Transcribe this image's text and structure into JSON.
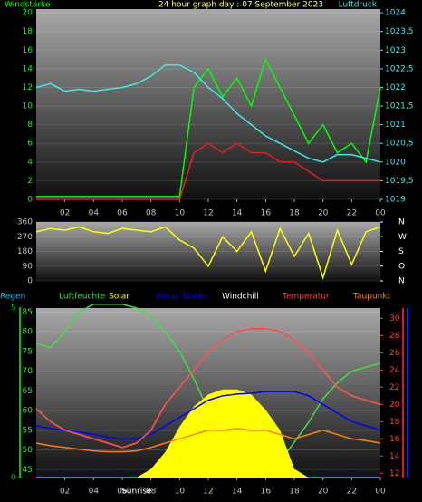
{
  "chart_data": [
    {
      "type": "line",
      "title": "24 hour graph day : 07 September 2023",
      "ylabel": "Windstärke",
      "y2label": "Luftdruck",
      "x": [
        0,
        1,
        2,
        3,
        4,
        5,
        6,
        7,
        8,
        9,
        10,
        11,
        12,
        13,
        14,
        15,
        16,
        17,
        18,
        19,
        20,
        21,
        22,
        23,
        24
      ],
      "xlim": [
        0,
        24
      ],
      "xticks": [
        {
          "value": 2,
          "label": "02"
        },
        {
          "value": 4,
          "label": "04"
        },
        {
          "value": 6,
          "label": "06"
        },
        {
          "value": 8,
          "label": "08"
        },
        10,
        12,
        14,
        16,
        18,
        20,
        22,
        {
          "value": 24,
          "label": "00"
        }
      ],
      "ylim": [
        0,
        20.4
      ],
      "yticks": [
        0,
        2,
        4,
        6,
        8,
        10,
        12,
        14,
        16,
        18,
        20
      ],
      "y2lim": [
        1019,
        1024.1
      ],
      "y2ticks": [
        1019,
        {
          "value": 1019.5,
          "label": "1019,5"
        },
        1020,
        {
          "value": 1020.5,
          "label": "1020,5"
        },
        1021,
        {
          "value": 1021.5,
          "label": "1021,5"
        },
        1022,
        {
          "value": 1022.5,
          "label": "1022,5"
        },
        1023,
        {
          "value": 1023.5,
          "label": "1023,5"
        },
        1024
      ],
      "series": [
        {
          "color": "#00ff00",
          "values": [
            0.3,
            0.3,
            0.3,
            0.3,
            0.3,
            0.3,
            0.3,
            0.3,
            0.3,
            0.3,
            0.3,
            12,
            14,
            11,
            13,
            10,
            15,
            12,
            9,
            6,
            8,
            5,
            6,
            4,
            12
          ]
        },
        {
          "color": "#e02020",
          "values": [
            0,
            0,
            0,
            0,
            0,
            0,
            0,
            0,
            0,
            0,
            0,
            5,
            6,
            5,
            6,
            5,
            5,
            4,
            4,
            3,
            2,
            2,
            2,
            2,
            2
          ]
        },
        {
          "color": "#40e8e8",
          "axis": "y2",
          "values": [
            1022.0,
            1022.1,
            1021.9,
            1021.95,
            1021.9,
            1021.95,
            1022.0,
            1022.1,
            1022.3,
            1022.6,
            1022.6,
            1022.4,
            1022.0,
            1021.7,
            1021.3,
            1021.0,
            1020.7,
            1020.5,
            1020.3,
            1020.1,
            1020.0,
            1020.2,
            1020.2,
            1020.1,
            1020.0
          ]
        }
      ]
    },
    {
      "type": "line",
      "x": [
        0,
        1,
        2,
        3,
        4,
        5,
        6,
        7,
        8,
        9,
        10,
        11,
        12,
        13,
        14,
        15,
        16,
        17,
        18,
        19,
        20,
        21,
        22,
        23,
        24
      ],
      "xlim": [
        0,
        24
      ],
      "ylim": [
        0,
        360
      ],
      "yticks": [
        0,
        90,
        180,
        270,
        360
      ],
      "y2lim": [
        0,
        360
      ],
      "y2ticks": [
        {
          "value": 0,
          "label": "N"
        },
        {
          "value": 90,
          "label": "O"
        },
        {
          "value": 180,
          "label": "S"
        },
        {
          "value": 270,
          "label": "W"
        },
        {
          "value": 360,
          "label": "N"
        }
      ],
      "series": [
        {
          "color": "#ffff00",
          "values": [
            300,
            320,
            310,
            330,
            300,
            290,
            320,
            310,
            300,
            330,
            250,
            200,
            90,
            270,
            180,
            300,
            60,
            320,
            150,
            290,
            20,
            310,
            100,
            300,
            330
          ]
        }
      ]
    },
    {
      "type": "line",
      "x": [
        0,
        1,
        2,
        3,
        4,
        5,
        6,
        7,
        8,
        9,
        10,
        11,
        12,
        13,
        14,
        15,
        16,
        17,
        18,
        19,
        20,
        21,
        22,
        23,
        24
      ],
      "xlim": [
        0,
        24
      ],
      "xticks": [
        {
          "value": 2,
          "label": "02"
        },
        {
          "value": 4,
          "label": "04"
        },
        {
          "value": 6,
          "label": "06"
        },
        {
          "value": 8,
          "label": "08"
        },
        10,
        12,
        14,
        16,
        18,
        20,
        22,
        {
          "value": 24,
          "label": "00"
        }
      ],
      "rainlim": [
        0,
        5
      ],
      "rainticks": [
        0,
        5
      ],
      "ylim": [
        43,
        86
      ],
      "yticks": [
        45,
        50,
        55,
        60,
        65,
        70,
        75,
        80,
        85
      ],
      "y2lim": [
        11.5,
        31.2
      ],
      "y2ticks": [
        12,
        14,
        16,
        18,
        20,
        22,
        24,
        26,
        28,
        30
      ],
      "solarlim": [
        0,
        1000
      ],
      "annotations": [
        {
          "text": "Sunrise",
          "x": 7
        }
      ],
      "series": [
        {
          "name": "Regen",
          "color": "#00bfff",
          "axis": "rain",
          "values": [
            0,
            0,
            0,
            0,
            0,
            0,
            0,
            0,
            0,
            0,
            0,
            0,
            0,
            0,
            0,
            0,
            0,
            0,
            0,
            0,
            0,
            0,
            0,
            0,
            0
          ]
        },
        {
          "name": "Luftfeuchte",
          "color": "#40e040",
          "values": [
            77,
            76,
            80,
            85,
            87,
            87,
            87,
            86,
            84,
            80,
            75,
            68,
            60,
            55,
            50,
            48,
            47,
            47,
            52,
            57,
            63,
            67,
            70,
            71,
            72
          ]
        },
        {
          "name": "Solar",
          "color": "#ffff00",
          "axis": "solar",
          "values": [
            0,
            0,
            0,
            0,
            0,
            0,
            0,
            0,
            50,
            150,
            300,
            420,
            490,
            520,
            520,
            490,
            400,
            280,
            50,
            0,
            0,
            0,
            0,
            0,
            0
          ]
        },
        {
          "name": "Temp. Boden",
          "color": "#0000ff",
          "axis": "y2",
          "values": [
            17.5,
            17.2,
            17,
            16.8,
            16.5,
            16.2,
            16,
            16,
            16.5,
            17.5,
            18.5,
            19.5,
            20.5,
            21,
            21.2,
            21.3,
            21.5,
            21.5,
            21.5,
            21,
            20,
            19,
            18,
            17.5,
            17
          ]
        },
        {
          "name": "Windchill",
          "color": "#ffffff",
          "axis": "y2",
          "values": [
            19.5,
            18,
            17,
            16.5,
            16,
            15.5,
            15,
            15.5,
            17,
            20,
            22,
            24,
            26,
            27.5,
            28.5,
            28.8,
            28.8,
            28.5,
            27.5,
            26,
            24,
            22,
            21,
            20.5,
            20
          ]
        },
        {
          "name": "Temperatur",
          "color": "#ff4040",
          "axis": "y2",
          "values": [
            19.5,
            18,
            17,
            16.5,
            16,
            15.5,
            15,
            15.5,
            17,
            20,
            22,
            24,
            26,
            27.5,
            28.5,
            28.8,
            28.8,
            28.5,
            27.5,
            26,
            24,
            22,
            21,
            20.5,
            20
          ]
        },
        {
          "name": "Taupunkt",
          "color": "#ff8000",
          "axis": "y2",
          "values": [
            15.5,
            15.2,
            15,
            14.8,
            14.6,
            14.5,
            14.5,
            14.6,
            15,
            15.5,
            16,
            16.5,
            17,
            17,
            17.2,
            17,
            17,
            16.5,
            16,
            16.5,
            17,
            16.5,
            16,
            15.8,
            15.5
          ]
        }
      ]
    }
  ]
}
